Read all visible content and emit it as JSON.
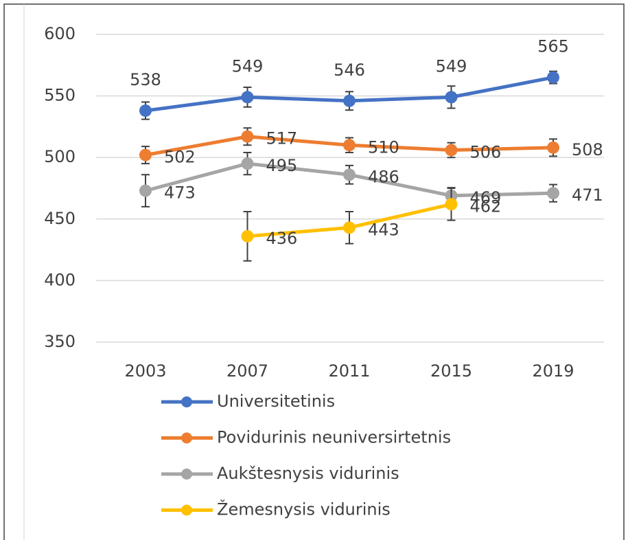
{
  "chart_data": {
    "type": "line",
    "categories": [
      "2003",
      "2007",
      "2011",
      "2015",
      "2019"
    ],
    "ylim": [
      350,
      600
    ],
    "yticks": [
      350,
      400,
      450,
      500,
      550,
      600
    ],
    "grid": true,
    "series": [
      {
        "name": "Universitetinis",
        "color": "#4472c4",
        "values": [
          538,
          549,
          546,
          549,
          565
        ],
        "errors": [
          7,
          8,
          7.5,
          9,
          5
        ]
      },
      {
        "name": "Povidurinis neuniversirtetnis",
        "color": "#ed7d31",
        "values": [
          502,
          517,
          510,
          506,
          508
        ],
        "errors": [
          7,
          7,
          6,
          6,
          7
        ]
      },
      {
        "name": "Aukštesnysis vidurinis",
        "color": "#a5a5a5",
        "values": [
          473,
          495,
          486,
          469,
          471
        ],
        "errors": [
          13,
          9,
          7.5,
          6.5,
          7
        ]
      },
      {
        "name": "Žemesnysis vidurinis",
        "color": "#ffc000",
        "values": [
          null,
          436,
          443,
          462,
          null
        ],
        "errors": [
          null,
          20,
          13,
          13,
          null
        ]
      }
    ]
  }
}
